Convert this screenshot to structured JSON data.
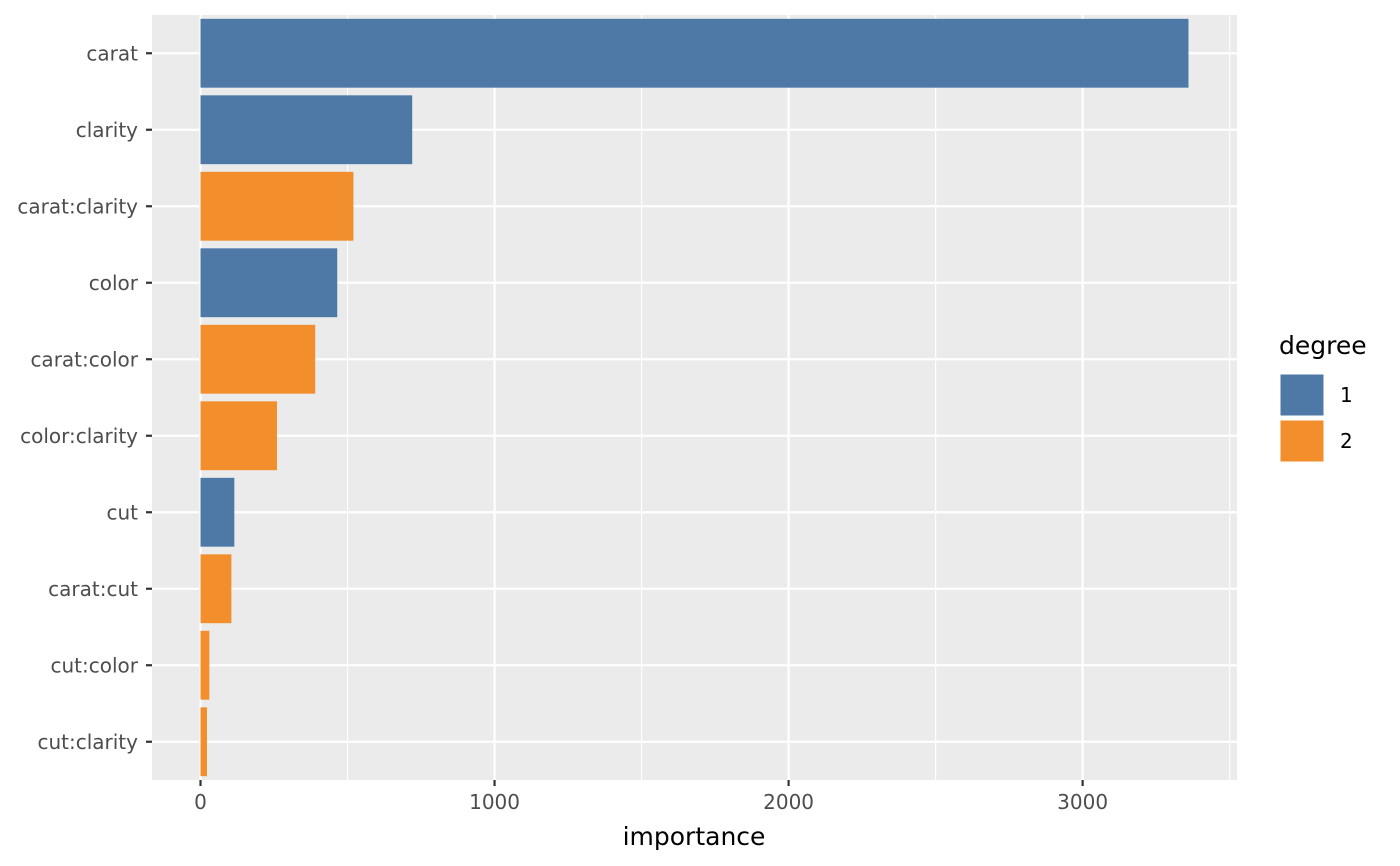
{
  "chart_data": {
    "type": "bar",
    "orientation": "horizontal",
    "title": "",
    "xlabel": "importance",
    "ylabel": "",
    "xlim": [
      -165,
      3525
    ],
    "x_ticks": [
      0,
      1000,
      2000,
      3000
    ],
    "grid": true,
    "legend_position": "right",
    "legend_title": "degree",
    "categories": [
      "carat",
      "clarity",
      "carat:clarity",
      "color",
      "carat:color",
      "color:clarity",
      "cut",
      "carat:cut",
      "cut:color",
      "cut:clarity"
    ],
    "values": [
      3360,
      720,
      520,
      465,
      390,
      260,
      115,
      105,
      30,
      22
    ],
    "degree": [
      "1",
      "1",
      "2",
      "1",
      "2",
      "2",
      "1",
      "2",
      "2",
      "2"
    ],
    "legend": [
      {
        "label": "1",
        "color": "#4e79a7"
      },
      {
        "label": "2",
        "color": "#f28e2b"
      }
    ],
    "colors": {
      "panel": "#ebebeb",
      "grid": "#ffffff",
      "tick": "#333333"
    }
  }
}
